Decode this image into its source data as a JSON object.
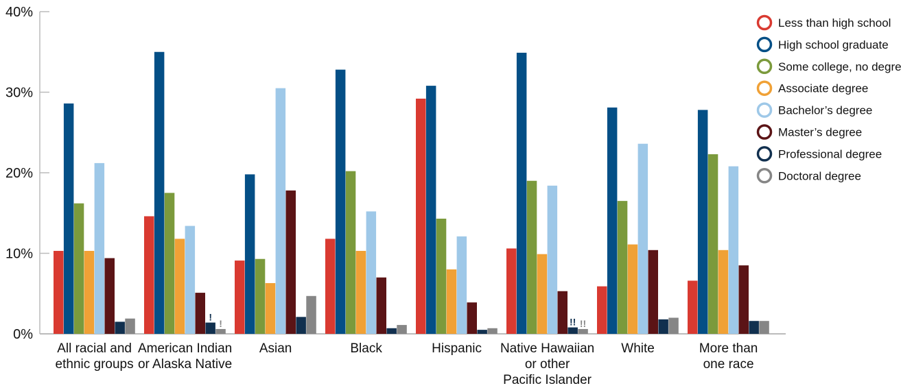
{
  "chart_data": {
    "type": "bar",
    "title": "",
    "xlabel": "",
    "ylabel": "",
    "ylim": [
      0,
      40
    ],
    "yticks": [
      {
        "value": 0,
        "label": "0%"
      },
      {
        "value": 10,
        "label": "10%"
      },
      {
        "value": 20,
        "label": "20%"
      },
      {
        "value": 30,
        "label": "30%"
      },
      {
        "value": 40,
        "label": "40%"
      }
    ],
    "grid": false,
    "legend_position": "top-right",
    "categories": [
      [
        "All racial and",
        "ethnic groups"
      ],
      [
        "American Indian",
        "or Alaska Native"
      ],
      [
        "Asian"
      ],
      [
        "Black"
      ],
      [
        "Hispanic"
      ],
      [
        "Native Hawaiian",
        "or other",
        "Pacific Islander"
      ],
      [
        "White"
      ],
      [
        "More than",
        "one race"
      ]
    ],
    "series": [
      {
        "name": "Less than high school",
        "color": "#d93a31",
        "values": [
          10.3,
          14.6,
          9.1,
          11.8,
          29.2,
          10.6,
          5.9,
          6.6
        ]
      },
      {
        "name": "High school graduate",
        "color": "#044f86",
        "values": [
          28.6,
          35.0,
          19.8,
          32.8,
          30.8,
          34.9,
          28.1,
          27.8
        ]
      },
      {
        "name": "Some college, no degree",
        "color": "#7b9a3c",
        "values": [
          16.2,
          17.5,
          9.3,
          20.2,
          14.3,
          19.0,
          16.5,
          22.3
        ]
      },
      {
        "name": "Associate degree",
        "color": "#f0a136",
        "values": [
          10.3,
          11.8,
          6.3,
          10.3,
          8.0,
          9.9,
          11.1,
          10.4
        ]
      },
      {
        "name": "Bachelor’s degree",
        "color": "#9ec8e8",
        "values": [
          21.2,
          13.4,
          30.5,
          15.2,
          12.1,
          18.4,
          23.6,
          20.8
        ]
      },
      {
        "name": "Master’s degree",
        "color": "#5b1416",
        "values": [
          9.4,
          5.1,
          17.8,
          7.0,
          3.9,
          5.3,
          10.4,
          8.5
        ]
      },
      {
        "name": "Professional degree",
        "color": "#11304f",
        "values": [
          1.5,
          1.4,
          2.1,
          0.7,
          0.5,
          0.8,
          1.8,
          1.6
        ]
      },
      {
        "name": "Doctoral degree",
        "color": "#868686",
        "values": [
          1.9,
          0.6,
          4.7,
          1.1,
          0.7,
          0.6,
          2.0,
          1.6
        ]
      }
    ],
    "annotations": [
      {
        "category": 1,
        "series": 6,
        "text": "!"
      },
      {
        "category": 1,
        "series": 7,
        "text": "!"
      },
      {
        "category": 5,
        "series": 6,
        "text": "!!"
      },
      {
        "category": 5,
        "series": 7,
        "text": "!!"
      }
    ]
  }
}
